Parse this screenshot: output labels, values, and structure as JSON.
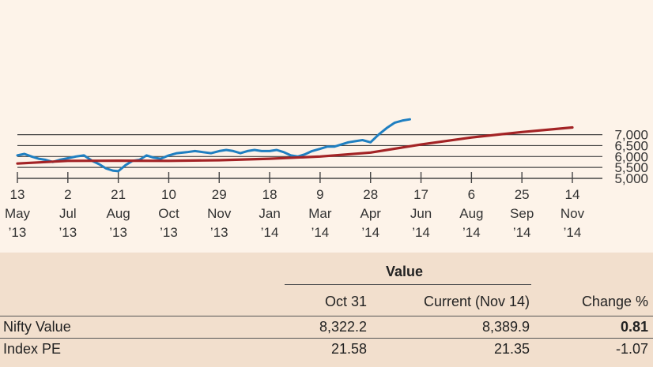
{
  "chart_data": {
    "type": "line",
    "title": "",
    "xlabel": "",
    "ylabel": "",
    "ylim": [
      5000,
      7800
    ],
    "yticks": [
      "5,000",
      "5,500",
      "6,000",
      "6,500",
      "7,000"
    ],
    "ytick_values": [
      5000,
      5500,
      6000,
      6500,
      7000
    ],
    "x_ticks": [
      {
        "day": "13",
        "month": "May",
        "year": "’13"
      },
      {
        "day": "2",
        "month": "Jul",
        "year": "’13"
      },
      {
        "day": "21",
        "month": "Aug",
        "year": "’13"
      },
      {
        "day": "10",
        "month": "Oct",
        "year": "’13"
      },
      {
        "day": "29",
        "month": "Nov",
        "year": "’13"
      },
      {
        "day": "18",
        "month": "Jan",
        "year": "’14"
      },
      {
        "day": "9",
        "month": "Mar",
        "year": "’14"
      },
      {
        "day": "28",
        "month": "Apr",
        "year": "’14"
      },
      {
        "day": "17",
        "month": "Jun",
        "year": "’14"
      },
      {
        "day": "6",
        "month": "Aug",
        "year": "’14"
      },
      {
        "day": "25",
        "month": "Sep",
        "year": "’14"
      },
      {
        "day": "14",
        "month": "Nov",
        "year": "’14"
      }
    ],
    "grid": true,
    "series": [
      {
        "color": "#1f7fc1",
        "x": [
          "2013-05-13",
          "2013-05-20",
          "2013-05-27",
          "2013-06-03",
          "2013-06-10",
          "2013-06-17",
          "2013-06-24",
          "2013-07-02",
          "2013-07-10",
          "2013-07-18",
          "2013-07-26",
          "2013-08-02",
          "2013-08-09",
          "2013-08-16",
          "2013-08-21",
          "2013-08-28",
          "2013-09-04",
          "2013-09-11",
          "2013-09-18",
          "2013-09-25",
          "2013-10-02",
          "2013-10-10",
          "2013-10-18",
          "2013-10-28",
          "2013-11-05",
          "2013-11-13",
          "2013-11-21",
          "2013-11-29",
          "2013-12-06",
          "2013-12-13",
          "2013-12-20",
          "2013-12-27",
          "2014-01-03",
          "2014-01-10",
          "2014-01-18",
          "2014-01-25",
          "2014-02-01",
          "2014-02-08",
          "2014-02-15",
          "2014-02-22",
          "2014-03-01",
          "2014-03-09",
          "2014-03-16",
          "2014-03-23",
          "2014-03-30",
          "2014-04-06",
          "2014-04-13",
          "2014-04-20",
          "2014-04-28",
          "2014-05-06",
          "2014-05-14",
          "2014-05-22",
          "2014-05-30",
          "2014-06-06"
        ],
        "y": [
          6050,
          6120,
          6000,
          5900,
          5850,
          5750,
          5850,
          5920,
          6000,
          6050,
          5800,
          5650,
          5450,
          5350,
          5330,
          5600,
          5800,
          5850,
          6050,
          5950,
          5900,
          6050,
          6150,
          6200,
          6250,
          6200,
          6150,
          6250,
          6300,
          6250,
          6150,
          6250,
          6300,
          6250,
          6250,
          6300,
          6200,
          6050,
          6000,
          6100,
          6250,
          6350,
          6450,
          6450,
          6550,
          6650,
          6700,
          6750,
          6650,
          7000,
          7300,
          7550,
          7650,
          7700
        ]
      },
      {
        "color": "#a32325",
        "x": [
          "2013-05-13",
          "2013-07-02",
          "2013-08-21",
          "2013-10-10",
          "2013-11-29",
          "2014-01-18",
          "2014-03-09",
          "2014-04-28",
          "2014-06-17",
          "2014-08-06",
          "2014-09-25",
          "2014-11-14"
        ],
        "y": [
          5680,
          5800,
          5810,
          5800,
          5830,
          5900,
          6000,
          6180,
          6550,
          6870,
          7120,
          7330
        ]
      }
    ]
  },
  "table": {
    "group_header": "Value",
    "col_oct31": "Oct 31",
    "col_current": "Current (Nov 14)",
    "col_change": "Change %",
    "rows": [
      {
        "label": "Nifty Value",
        "oct31": "8,322.2",
        "current": "8,389.9",
        "change": "0.81"
      },
      {
        "label": "Index PE",
        "oct31": "21.58",
        "current": "21.35",
        "change": "-1.07"
      }
    ]
  }
}
